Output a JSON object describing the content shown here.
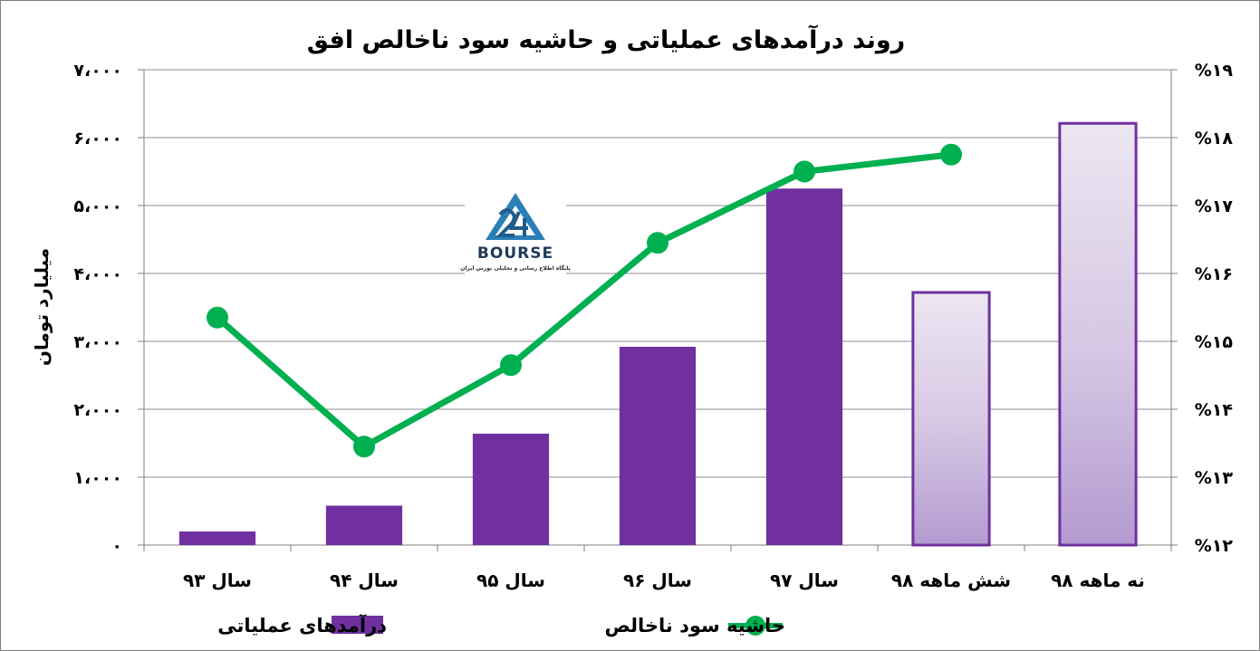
{
  "chart_data": {
    "type": "bar",
    "title": "روند درآمدهای عملیاتی و حاشیه سود ناخالص افق",
    "ylabel": "میلیارد تومان",
    "categories": [
      "سال ۹۳",
      "سال ۹۴",
      "سال ۹۵",
      "سال ۹۶",
      "سال ۹۷",
      "شش ماهه ۹۸",
      "نه ماهه ۹۸"
    ],
    "ylim": [
      0,
      7000
    ],
    "y_ticks": [
      0,
      1000,
      2000,
      3000,
      4000,
      5000,
      6000,
      7000
    ],
    "y_tick_labels": [
      "۰",
      "۱،۰۰۰",
      "۲،۰۰۰",
      "۳،۰۰۰",
      "۴،۰۰۰",
      "۵،۰۰۰",
      "۶،۰۰۰",
      "۷،۰۰۰"
    ],
    "y2lim": [
      12,
      19
    ],
    "y2_ticks": [
      12,
      13,
      14,
      15,
      16,
      17,
      18,
      19
    ],
    "y2_tick_labels": [
      "%۱۲",
      "%۱۳",
      "%۱۴",
      "%۱۵",
      "%۱۶",
      "%۱۷",
      "%۱۸",
      "%۱۹"
    ],
    "grid": true,
    "legend_position": "bottom",
    "series": [
      {
        "name": "درآمدهای عملیاتی",
        "type": "bar",
        "axis": "left",
        "color": "#7030a0",
        "values": [
          200,
          580,
          1640,
          2920,
          5250,
          3720,
          6210
        ]
      },
      {
        "name": "حاشیه سود ناخالص",
        "type": "line",
        "axis": "right",
        "color": "#00b050",
        "values": [
          15.35,
          13.45,
          14.65,
          16.45,
          17.5,
          17.75,
          null
        ]
      }
    ]
  },
  "logo": {
    "word": "BOURSE",
    "subtitle": "پایگاه اطلاع رسانی و تحلیلی بورس ایران"
  }
}
